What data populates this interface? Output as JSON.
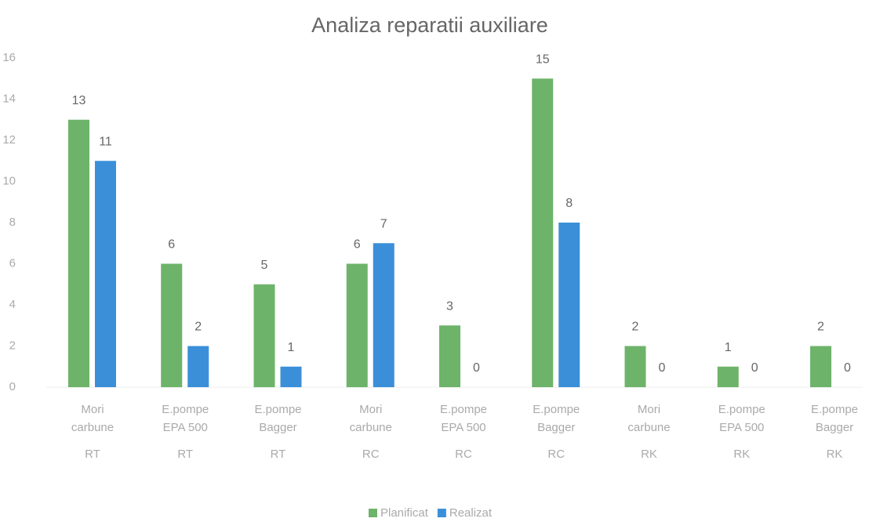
{
  "chart_data": {
    "type": "bar",
    "title": "Analiza reparatii auxiliare",
    "categories": [
      [
        "Mori",
        "carbune"
      ],
      [
        "E.pompe",
        "EPA 500"
      ],
      [
        "E.pompe",
        "Bagger"
      ],
      [
        "Mori",
        "carbune"
      ],
      [
        "E.pompe",
        "EPA 500"
      ],
      [
        "E.pompe",
        "Bagger"
      ],
      [
        "Mori",
        "carbune"
      ],
      [
        "E.pompe",
        "EPA 500"
      ],
      [
        "E.pompe",
        "Bagger"
      ]
    ],
    "groups": [
      "RT",
      "RT",
      "RT",
      "RC",
      "RC",
      "RC",
      "RK",
      "RK",
      "RK"
    ],
    "series": [
      {
        "name": "Planificat",
        "color": "#6db36a",
        "values": [
          13,
          6,
          5,
          6,
          3,
          15,
          2,
          1,
          2
        ]
      },
      {
        "name": "Realizat",
        "color": "#3b8fd9",
        "values": [
          11,
          2,
          1,
          7,
          0,
          8,
          0,
          0,
          0
        ]
      }
    ],
    "ylim": [
      0,
      16
    ],
    "yticks": [
      0,
      2,
      4,
      6,
      8,
      10,
      12,
      14,
      16
    ],
    "grid": false,
    "legend": "bottom"
  }
}
